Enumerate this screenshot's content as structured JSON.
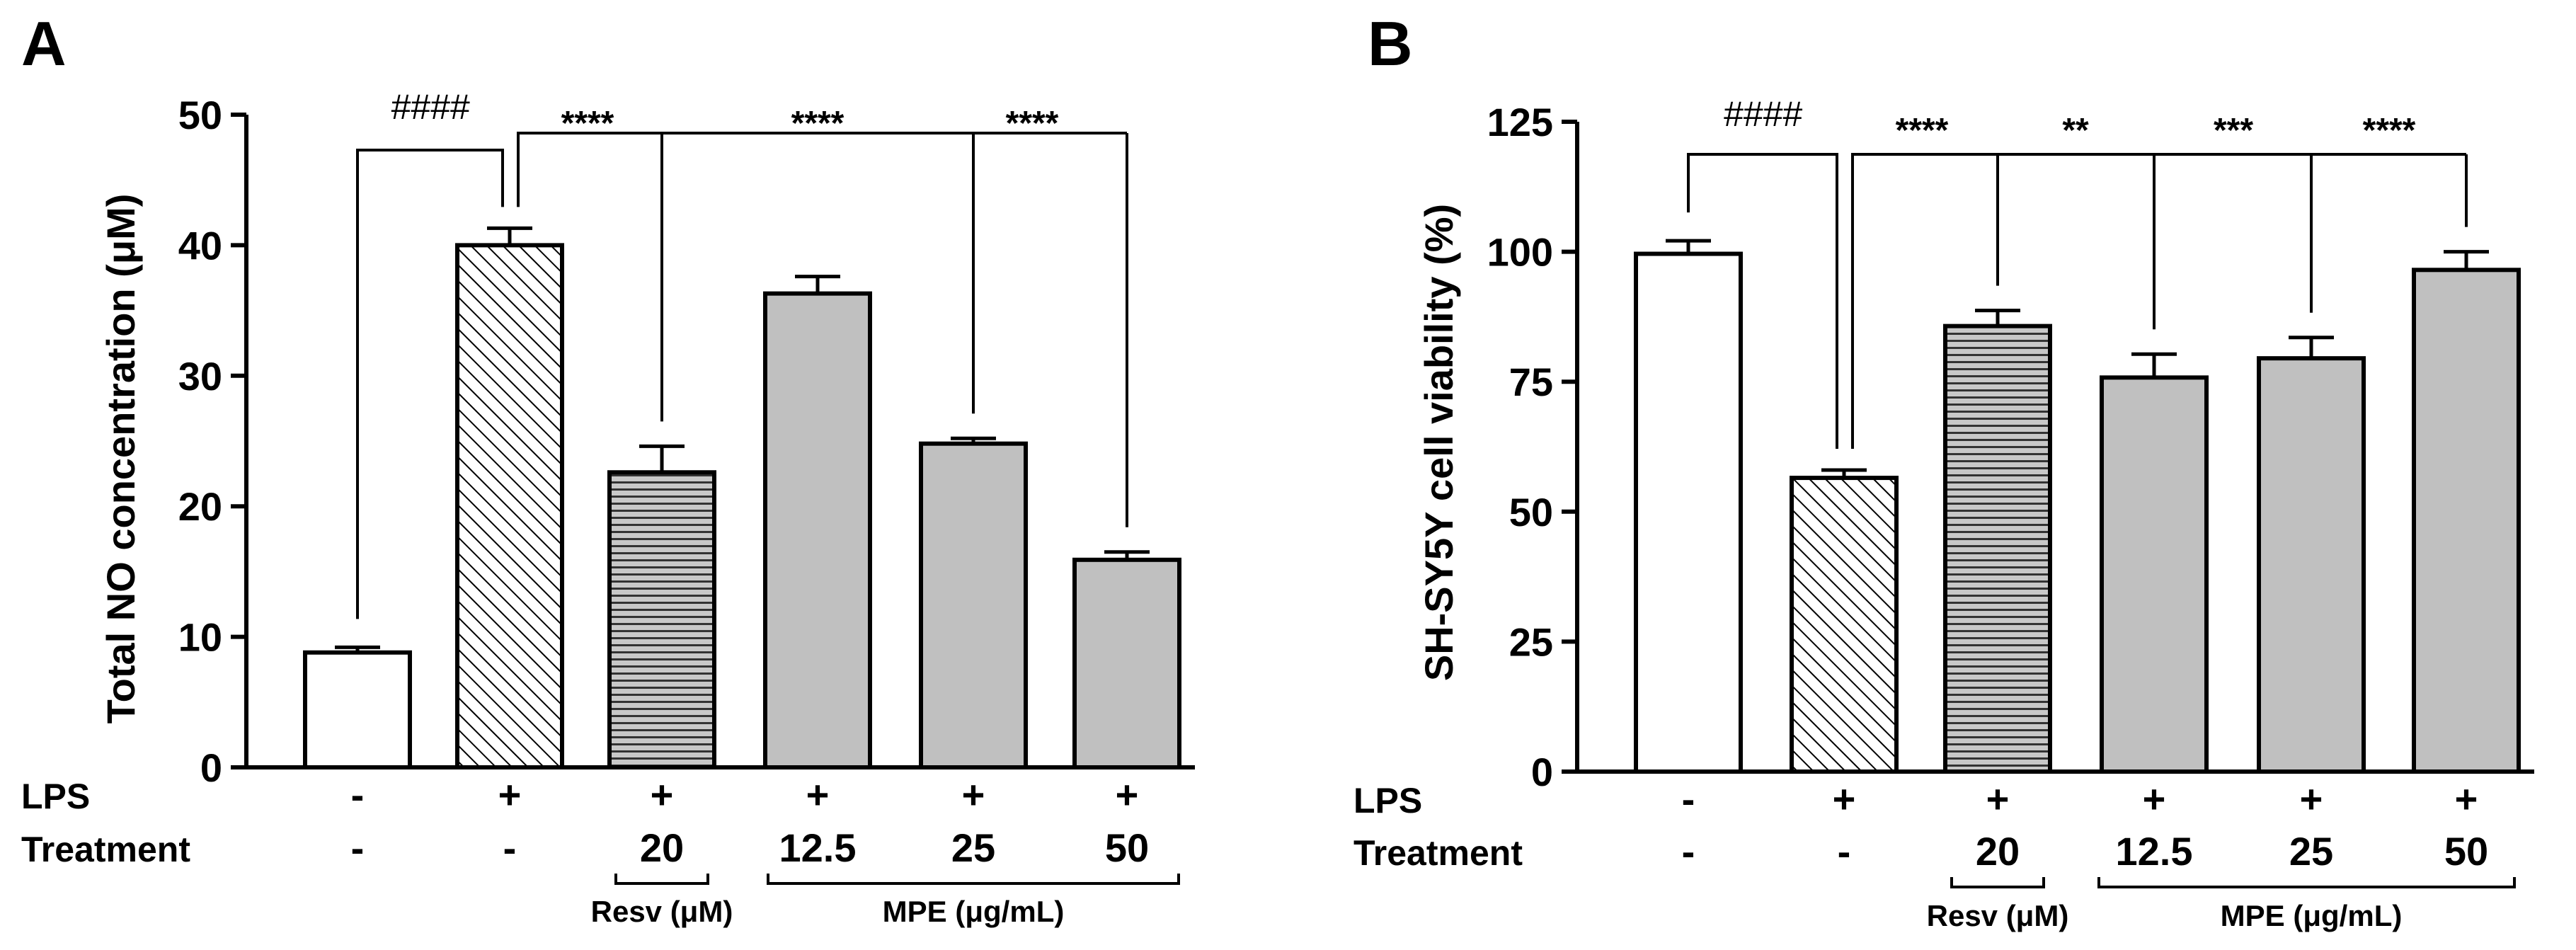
{
  "chart_data": [
    {
      "type": "bar",
      "panel": "A",
      "ylabel": "Total NO concentration (μM)",
      "ylim": [
        0,
        50
      ],
      "yticks": [
        "0",
        "10",
        "20",
        "30",
        "40",
        "50"
      ],
      "ytick_values": [
        0,
        10,
        20,
        30,
        40,
        50
      ],
      "values": [
        8.8,
        40.0,
        22.6,
        36.3,
        24.8,
        15.9
      ],
      "errors": [
        0.4,
        1.3,
        2.0,
        1.3,
        0.4,
        0.6
      ],
      "fills": [
        "white",
        "diagonal",
        "horizontal",
        "gray",
        "gray",
        "gray"
      ],
      "lps": [
        "-",
        "+",
        "+",
        "+",
        "+",
        "+"
      ],
      "treatment": [
        "-",
        "-",
        "20",
        "12.5",
        "25",
        "50"
      ],
      "row_labels": {
        "lps": "LPS",
        "treatment": "Treatment"
      },
      "groups": {
        "resv": "Resv (μM)",
        "mpe": "MPE (μg/mL)"
      },
      "significance": {
        "hash": "####",
        "stars": [
          "****",
          "****",
          "****"
        ],
        "compare_to": [
          2,
          4,
          5
        ]
      }
    },
    {
      "type": "bar",
      "panel": "B",
      "ylabel": "SH-SY5Y cell viability (%)",
      "ylim": [
        0,
        125
      ],
      "yticks": [
        "0",
        "25",
        "50",
        "75",
        "100",
        "125"
      ],
      "ytick_values": [
        0,
        25,
        50,
        75,
        100,
        125
      ],
      "values": [
        99.6,
        56.5,
        85.7,
        75.8,
        79.5,
        96.5
      ],
      "errors": [
        2.5,
        1.5,
        3.0,
        4.5,
        4.0,
        3.5
      ],
      "fills": [
        "white",
        "diagonal",
        "horizontal",
        "gray",
        "gray",
        "gray"
      ],
      "lps": [
        "-",
        "+",
        "+",
        "+",
        "+",
        "+"
      ],
      "treatment": [
        "-",
        "-",
        "20",
        "12.5",
        "25",
        "50"
      ],
      "row_labels": {
        "lps": "LPS",
        "treatment": "Treatment"
      },
      "groups": {
        "resv": "Resv (μM)",
        "mpe": "MPE (μg/mL)"
      },
      "significance": {
        "hash": "####",
        "stars": [
          "****",
          "**",
          "***",
          "****"
        ],
        "compare_to": [
          2,
          3,
          4,
          5
        ]
      }
    }
  ],
  "colors": {
    "gray": "#c0c0c0",
    "white": "#ffffff",
    "ink": "#000000"
  }
}
